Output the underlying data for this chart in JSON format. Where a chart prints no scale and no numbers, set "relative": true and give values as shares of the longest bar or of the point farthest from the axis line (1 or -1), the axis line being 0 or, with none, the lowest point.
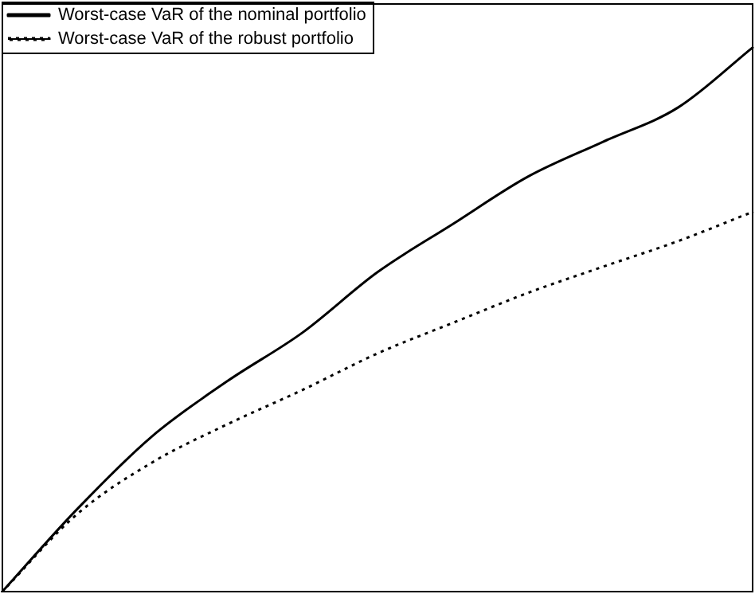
{
  "chart_data": {
    "type": "line",
    "relative": true,
    "legend": "top left",
    "categories": [
      null,
      null,
      null,
      null,
      null,
      null,
      null,
      null,
      null,
      null,
      null
    ],
    "series": [
      {
        "name": "Worst-case VaR of the nominal portfolio",
        "color": "#000000",
        "line_style": "solid",
        "values": [
          0,
          0.152,
          0.286,
          0.387,
          0.476,
          0.587,
          0.675,
          0.762,
          0.826,
          0.889,
          1
        ]
      },
      {
        "name": "Worst-case VaR of the robust portfolio",
        "color": "#000000",
        "line_style": "dotted",
        "values": [
          0,
          0.143,
          0.238,
          0.308,
          0.371,
          0.438,
          0.494,
          0.549,
          0.597,
          0.644,
          0.698
        ]
      }
    ]
  }
}
